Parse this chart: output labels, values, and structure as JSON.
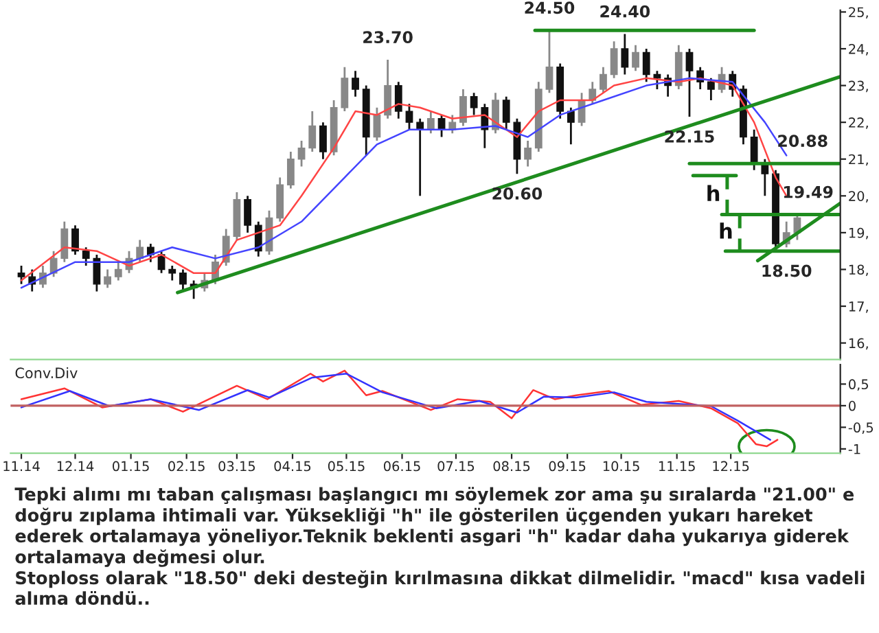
{
  "chart_data": [
    {
      "type": "candlestick",
      "tick_labels": "y",
      "x": [
        "2014-11-01",
        "2014-11-07",
        "2014-11-13",
        "2014-11-19",
        "2014-11-25",
        "2014-12-01",
        "2014-12-07",
        "2014-12-13",
        "2014-12-19",
        "2014-12-25",
        "2014-12-31",
        "2015-01-06",
        "2015-01-12",
        "2015-01-18",
        "2015-01-24",
        "2015-01-30",
        "2015-02-05",
        "2015-02-11",
        "2015-02-17",
        "2015-02-23",
        "2015-03-01",
        "2015-03-07",
        "2015-03-13",
        "2015-03-19",
        "2015-03-25",
        "2015-03-31",
        "2015-04-06",
        "2015-04-12",
        "2015-04-18",
        "2015-04-24",
        "2015-04-30",
        "2015-05-06",
        "2015-05-12",
        "2015-05-18",
        "2015-05-24",
        "2015-05-30",
        "2015-06-05",
        "2015-06-11",
        "2015-06-17",
        "2015-06-23",
        "2015-06-29",
        "2015-07-05",
        "2015-07-11",
        "2015-07-17",
        "2015-07-23",
        "2015-07-29",
        "2015-08-04",
        "2015-08-10",
        "2015-08-16",
        "2015-08-22",
        "2015-08-28",
        "2015-09-03",
        "2015-09-09",
        "2015-09-15",
        "2015-09-21",
        "2015-09-27",
        "2015-10-03",
        "2015-10-09",
        "2015-10-15",
        "2015-10-21",
        "2015-10-27",
        "2015-11-02",
        "2015-11-08",
        "2015-11-14",
        "2015-11-20",
        "2015-11-26",
        "2015-12-02",
        "2015-12-08",
        "2015-12-14",
        "2015-12-20",
        "2015-12-26",
        "2016-01-01",
        "2016-01-07"
      ],
      "ohlc": [
        [
          17.9,
          18.1,
          17.6,
          17.8
        ],
        [
          17.8,
          18.0,
          17.4,
          17.6
        ],
        [
          17.6,
          18.1,
          17.5,
          17.9
        ],
        [
          17.9,
          18.5,
          17.8,
          18.3
        ],
        [
          18.3,
          19.3,
          18.2,
          19.1
        ],
        [
          19.1,
          19.2,
          18.4,
          18.5
        ],
        [
          18.5,
          18.6,
          18.1,
          18.3
        ],
        [
          18.3,
          18.4,
          17.4,
          17.6
        ],
        [
          17.6,
          18.0,
          17.5,
          17.8
        ],
        [
          17.8,
          18.2,
          17.7,
          18.0
        ],
        [
          18.0,
          18.5,
          17.9,
          18.3
        ],
        [
          18.3,
          18.8,
          18.2,
          18.6
        ],
        [
          18.6,
          18.7,
          18.2,
          18.4
        ],
        [
          18.4,
          18.5,
          17.9,
          18.0
        ],
        [
          18.0,
          18.1,
          17.7,
          17.9
        ],
        [
          17.9,
          18.0,
          17.4,
          17.6
        ],
        [
          17.6,
          17.7,
          17.2,
          17.5
        ],
        [
          17.5,
          17.9,
          17.4,
          17.7
        ],
        [
          17.7,
          18.4,
          17.6,
          18.2
        ],
        [
          18.2,
          19.1,
          18.1,
          18.9
        ],
        [
          18.9,
          20.1,
          18.8,
          19.9
        ],
        [
          19.9,
          20.0,
          19.0,
          19.2
        ],
        [
          19.2,
          19.3,
          18.35,
          18.5
        ],
        [
          18.5,
          19.6,
          18.4,
          19.4
        ],
        [
          19.4,
          20.5,
          19.3,
          20.3
        ],
        [
          20.3,
          21.2,
          20.2,
          21.0
        ],
        [
          21.0,
          21.5,
          20.8,
          21.3
        ],
        [
          21.3,
          22.3,
          21.2,
          21.9
        ],
        [
          21.9,
          22.0,
          21.0,
          21.2
        ],
        [
          21.2,
          22.6,
          21.1,
          22.4
        ],
        [
          22.4,
          23.5,
          22.3,
          23.2
        ],
        [
          23.2,
          23.4,
          22.7,
          22.9
        ],
        [
          22.9,
          23.0,
          21.1,
          21.6
        ],
        [
          21.6,
          22.4,
          21.5,
          22.2
        ],
        [
          22.2,
          23.7,
          22.1,
          23.0
        ],
        [
          23.0,
          23.1,
          22.1,
          22.3
        ],
        [
          22.3,
          22.5,
          21.8,
          22.0
        ],
        [
          22.0,
          22.1,
          20.0,
          21.8
        ],
        [
          21.8,
          22.3,
          21.7,
          22.1
        ],
        [
          22.1,
          22.2,
          21.6,
          21.8
        ],
        [
          21.8,
          22.2,
          21.7,
          22.0
        ],
        [
          22.0,
          22.9,
          21.9,
          22.7
        ],
        [
          22.7,
          22.8,
          22.2,
          22.4
        ],
        [
          22.4,
          22.5,
          21.3,
          21.8
        ],
        [
          21.8,
          22.8,
          21.7,
          22.6
        ],
        [
          22.6,
          22.7,
          21.8,
          22.0
        ],
        [
          22.0,
          22.1,
          20.6,
          21.0
        ],
        [
          21.0,
          21.5,
          20.8,
          21.3
        ],
        [
          21.3,
          23.1,
          21.2,
          22.9
        ],
        [
          22.9,
          24.5,
          22.8,
          23.5
        ],
        [
          23.5,
          23.6,
          22.1,
          22.3
        ],
        [
          22.3,
          22.4,
          21.4,
          22.0
        ],
        [
          22.0,
          22.8,
          21.9,
          22.6
        ],
        [
          22.6,
          23.1,
          22.5,
          22.9
        ],
        [
          22.9,
          23.5,
          22.8,
          23.3
        ],
        [
          23.3,
          24.2,
          23.2,
          24.0
        ],
        [
          24.0,
          24.4,
          23.3,
          23.5
        ],
        [
          23.5,
          24.1,
          23.4,
          23.9
        ],
        [
          23.9,
          24.0,
          23.1,
          23.3
        ],
        [
          23.3,
          23.4,
          22.9,
          23.2
        ],
        [
          23.2,
          23.3,
          22.7,
          23.0
        ],
        [
          23.0,
          24.1,
          22.9,
          23.9
        ],
        [
          23.9,
          24.0,
          22.15,
          23.4
        ],
        [
          23.4,
          23.5,
          22.9,
          23.1
        ],
        [
          23.1,
          23.2,
          22.6,
          22.9
        ],
        [
          22.9,
          23.5,
          22.8,
          23.3
        ],
        [
          23.3,
          23.4,
          22.7,
          22.9
        ],
        [
          22.9,
          23.0,
          21.4,
          21.6
        ],
        [
          21.6,
          21.8,
          20.7,
          20.9
        ],
        [
          20.9,
          21.0,
          20.0,
          20.6
        ],
        [
          20.6,
          20.7,
          18.5,
          18.7
        ],
        [
          18.7,
          19.3,
          18.6,
          19.0
        ],
        [
          19.0,
          19.49,
          18.8,
          19.4
        ]
      ],
      "series": [
        {
          "type": "line",
          "color": "#ff4444",
          "x": [
            "2014-11-01",
            "2014-11-25",
            "2014-12-13",
            "2014-12-31",
            "2015-01-18",
            "2015-02-05",
            "2015-02-17",
            "2015-03-01",
            "2015-03-25",
            "2015-04-06",
            "2015-04-24",
            "2015-05-06",
            "2015-05-18",
            "2015-05-30",
            "2015-06-11",
            "2015-06-29",
            "2015-07-17",
            "2015-08-04",
            "2015-08-16",
            "2015-08-28",
            "2015-09-15",
            "2015-09-27",
            "2015-10-15",
            "2015-11-02",
            "2015-11-14",
            "2015-12-02",
            "2015-12-14",
            "2015-12-26",
            "2016-01-01"
          ],
          "values": [
            17.7,
            18.6,
            18.5,
            18.1,
            18.4,
            17.9,
            17.9,
            18.8,
            19.2,
            20.0,
            21.3,
            22.3,
            22.2,
            22.5,
            22.4,
            22.1,
            22.2,
            21.6,
            22.3,
            22.6,
            22.6,
            23.0,
            23.2,
            23.1,
            23.2,
            23.0,
            22.0,
            20.5,
            20.0
          ]
        },
        {
          "type": "line",
          "color": "#4444ff",
          "x": [
            "2014-11-01",
            "2014-12-01",
            "2014-12-31",
            "2015-01-24",
            "2015-02-17",
            "2015-03-13",
            "2015-04-06",
            "2015-04-30",
            "2015-05-18",
            "2015-06-05",
            "2015-06-29",
            "2015-07-23",
            "2015-08-10",
            "2015-08-28",
            "2015-09-21",
            "2015-10-15",
            "2015-11-08",
            "2015-12-02",
            "2015-12-20",
            "2016-01-01"
          ],
          "values": [
            17.5,
            18.2,
            18.2,
            18.6,
            18.3,
            18.6,
            19.3,
            20.5,
            21.4,
            21.8,
            21.8,
            21.9,
            21.6,
            22.2,
            22.6,
            23.0,
            23.2,
            23.1,
            22.0,
            21.1
          ]
        },
        {
          "type": "line",
          "color": "#1e8c1e",
          "x": [
            "2015-01-27",
            "2016-01-31"
          ],
          "values": [
            17.37,
            23.24
          ]
        },
        {
          "type": "line",
          "color": "#1e8c1e",
          "x": [
            "2015-12-16",
            "2016-01-31"
          ],
          "values": [
            18.24,
            19.8
          ]
        },
        {
          "type": "line",
          "color": "#1e8c1e",
          "x": [
            "2015-08-14",
            "2015-12-14"
          ],
          "values": [
            24.5,
            24.5
          ]
        },
        {
          "type": "line",
          "color": "#1e8c1e",
          "x": [
            "2015-11-08",
            "2016-01-31"
          ],
          "values": [
            20.88,
            20.88
          ]
        },
        {
          "type": "line",
          "color": "#1e8c1e",
          "x": [
            "2015-11-26",
            "2016-01-31"
          ],
          "values": [
            19.49,
            19.49
          ]
        },
        {
          "type": "line",
          "color": "#1e8c1e",
          "x": [
            "2015-11-28",
            "2016-01-31"
          ],
          "values": [
            18.5,
            18.5
          ]
        },
        {
          "type": "line",
          "color": "#1e8c1e",
          "x": [
            "2015-11-10",
            "2015-12-04"
          ],
          "values": [
            20.55,
            20.55
          ]
        },
        {
          "type": "line",
          "name": "h",
          "line_style": "dashed",
          "color": "#1e8c1e",
          "x": [
            "2015-11-29",
            "2015-11-29"
          ],
          "values": [
            20.55,
            19.49
          ]
        },
        {
          "type": "line",
          "name": "h",
          "line_style": "dashed",
          "color": "#1e8c1e",
          "x": [
            "2015-12-06",
            "2015-12-06"
          ],
          "values": [
            19.49,
            18.5
          ]
        }
      ],
      "annotations": [
        {
          "text": "23.70",
          "x": "2015-05-24",
          "y": 23.7
        },
        {
          "text": "24.50",
          "x": "2015-08-22",
          "y": 24.5
        },
        {
          "text": "24.40",
          "x": "2015-10-03",
          "y": 24.4
        },
        {
          "text": "20.60",
          "x": "2015-08-04",
          "y": 20.6
        },
        {
          "text": "22.15",
          "x": "2015-11-08",
          "y": 22.15
        },
        {
          "text": "20.88",
          "x": "2016-01-10",
          "y": 20.88
        },
        {
          "text": "19.49",
          "x": "2016-01-13",
          "y": 19.49
        },
        {
          "text": "18.50",
          "x": "2016-01-01",
          "y": 18.5
        }
      ],
      "xlim": [
        "2014-10-26",
        "2016-01-31"
      ],
      "ylim": [
        15.55,
        25.05
      ],
      "yticks": [
        {
          "value": 16,
          "label": "16,"
        },
        {
          "value": 17,
          "label": "17,"
        },
        {
          "value": 18,
          "label": "18,"
        },
        {
          "value": 19,
          "label": "19,"
        },
        {
          "value": 20,
          "label": "20,"
        },
        {
          "value": 21,
          "label": "21,"
        },
        {
          "value": 22,
          "label": "22,"
        },
        {
          "value": 23,
          "label": "23,"
        },
        {
          "value": 24,
          "label": "24,"
        },
        {
          "value": 25,
          "label": "25,"
        }
      ]
    },
    {
      "type": "line",
      "title": "Conv.Div",
      "series": [
        {
          "color": "#ff3333",
          "x": [
            "2014-11-01",
            "2014-11-25",
            "2014-12-16",
            "2015-01-12",
            "2015-01-30",
            "2015-03-01",
            "2015-03-18",
            "2015-04-11",
            "2015-04-18",
            "2015-04-30",
            "2015-05-12",
            "2015-05-21",
            "2015-06-17",
            "2015-07-02",
            "2015-07-20",
            "2015-08-01",
            "2015-08-13",
            "2015-08-25",
            "2015-09-06",
            "2015-09-24",
            "2015-10-12",
            "2015-11-02",
            "2015-11-20",
            "2015-12-05",
            "2015-12-15",
            "2015-12-21",
            "2015-12-27"
          ],
          "values": [
            0.15,
            0.4,
            -0.04,
            0.15,
            -0.14,
            0.46,
            0.15,
            0.74,
            0.56,
            0.81,
            0.24,
            0.34,
            -0.1,
            0.15,
            0.09,
            -0.29,
            0.36,
            0.15,
            0.24,
            0.34,
            0.02,
            0.11,
            -0.06,
            -0.41,
            -0.89,
            -0.94,
            -0.79
          ]
        },
        {
          "color": "#3333ff",
          "x": [
            "2014-11-01",
            "2014-11-28",
            "2014-12-20",
            "2015-01-12",
            "2015-02-08",
            "2015-03-07",
            "2015-03-19",
            "2015-04-12",
            "2015-05-01",
            "2015-05-21",
            "2015-06-20",
            "2015-07-14",
            "2015-08-04",
            "2015-08-19",
            "2015-09-06",
            "2015-09-27",
            "2015-10-15",
            "2015-11-20",
            "2015-12-05",
            "2015-12-23"
          ],
          "values": [
            -0.04,
            0.34,
            -0.01,
            0.15,
            -0.1,
            0.36,
            0.19,
            0.65,
            0.74,
            0.31,
            -0.06,
            0.11,
            -0.16,
            0.21,
            0.19,
            0.31,
            0.09,
            -0.01,
            -0.35,
            -0.79
          ]
        }
      ],
      "ref_lines": [
        {
          "axis": "y",
          "value": 0,
          "color": "#c06060"
        }
      ],
      "annotations": [
        "Tepki alımı mı taban çalışması başlangıcı mı söylemek zor ama şu sıralarda \"21.00\" e doğru zıplama ihtimali var. Yüksekliği \"h\" ile gösterilen üçgenden yukarı hareket ederek ortalamaya yöneliyor.Teknik beklenti asgari \"h\" kadar daha yukarıya giderek ortalamaya değmesi olur.\nStoploss olarak \"18.50\" deki desteğin kırılmasına dikkat dilmelidir. \"macd\" kısa vadeli alıma döndü.."
      ],
      "xlim": [
        "2014-10-26",
        "2016-01-31"
      ],
      "ylim": [
        -1.1,
        0.95
      ],
      "xticks": [
        {
          "value": "2014-11-01",
          "label": "11.14"
        },
        {
          "value": "2014-12-01",
          "label": "12.14"
        },
        {
          "value": "2015-01-01",
          "label": "01.15"
        },
        {
          "value": "2015-02-01",
          "label": "02.15"
        },
        {
          "value": "2015-03-01",
          "label": "03.15"
        },
        {
          "value": "2015-04-01",
          "label": "04.15"
        },
        {
          "value": "2015-05-01",
          "label": "05.15"
        },
        {
          "value": "2015-06-01",
          "label": "06.15"
        },
        {
          "value": "2015-07-01",
          "label": "07.15"
        },
        {
          "value": "2015-08-01",
          "label": "08.15"
        },
        {
          "value": "2015-09-01",
          "label": "09.15"
        },
        {
          "value": "2015-10-01",
          "label": "10.15"
        },
        {
          "value": "2015-11-01",
          "label": "11.15"
        },
        {
          "value": "2015-12-01",
          "label": "12.15"
        }
      ],
      "yticks": [
        {
          "value": 0.5,
          "label": "0,5"
        },
        0,
        {
          "value": -0.5,
          "label": "-0,5"
        },
        {
          "value": -1,
          "label": "-1"
        }
      ]
    }
  ]
}
